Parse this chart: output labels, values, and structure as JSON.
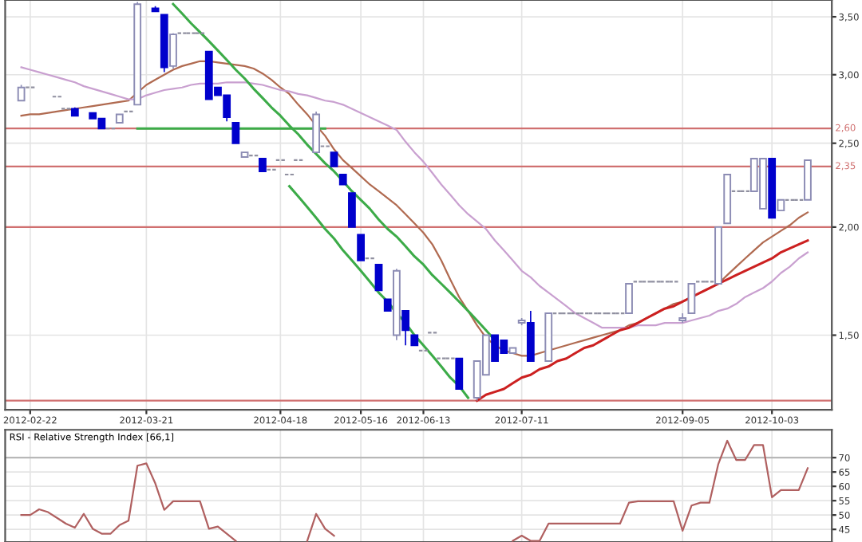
{
  "chart_data": [
    {
      "type": "candlestick",
      "log": "y",
      "grid": true,
      "categories": [
        null,
        "2012-02-22",
        null,
        null,
        null,
        null,
        null,
        null,
        null,
        null,
        null,
        null,
        null,
        null,
        "2012-03-21",
        null,
        null,
        null,
        null,
        null,
        null,
        null,
        null,
        null,
        null,
        null,
        null,
        null,
        null,
        "2012-04-18",
        null,
        null,
        null,
        null,
        null,
        null,
        null,
        null,
        "2012-05-16",
        null,
        null,
        null,
        null,
        null,
        null,
        "2012-06-13",
        null,
        null,
        null,
        null,
        null,
        null,
        null,
        null,
        null,
        null,
        "2012-07-11",
        null,
        null,
        null,
        null,
        null,
        null,
        null,
        null,
        null,
        null,
        null,
        null,
        null,
        null,
        null,
        null,
        null,
        "2012-09-05",
        null,
        null,
        null,
        null,
        null,
        null,
        null,
        null,
        null,
        "2012-10-03",
        null,
        null,
        null,
        null
      ],
      "ohlc": [
        [
          2.8,
          2.92,
          2.8,
          2.9
        ],
        [
          2.9,
          2.9,
          2.9,
          2.9
        ],
        null,
        null,
        [
          2.83,
          2.83,
          2.83,
          2.83
        ],
        [
          2.74,
          2.74,
          2.74,
          2.74
        ],
        [
          2.74,
          2.75,
          2.69,
          2.69
        ],
        null,
        [
          2.71,
          2.71,
          2.67,
          2.67
        ],
        [
          2.67,
          2.67,
          2.6,
          2.6
        ],
        [
          2.6,
          2.6,
          2.6,
          2.6
        ],
        [
          2.64,
          2.7,
          2.64,
          2.7
        ],
        [
          2.72,
          2.72,
          2.72,
          2.72
        ],
        [
          2.77,
          3.64,
          2.77,
          3.62
        ],
        null,
        [
          3.58,
          3.6,
          3.55,
          3.55
        ],
        [
          3.52,
          3.52,
          3.02,
          3.06
        ],
        [
          3.07,
          3.35,
          3.05,
          3.34
        ],
        [
          3.35,
          3.35,
          3.35,
          3.35
        ],
        [
          3.35,
          3.35,
          3.35,
          3.35
        ],
        [
          3.35,
          3.35,
          3.35,
          3.35
        ],
        [
          3.19,
          3.19,
          2.81,
          2.81
        ],
        [
          2.9,
          2.9,
          2.84,
          2.84
        ],
        [
          2.84,
          2.84,
          2.65,
          2.68
        ],
        [
          2.64,
          2.64,
          2.5,
          2.5
        ],
        [
          2.41,
          2.44,
          2.41,
          2.44
        ],
        [
          2.42,
          2.42,
          2.42,
          2.42
        ],
        [
          2.4,
          2.4,
          2.32,
          2.32
        ],
        [
          2.33,
          2.33,
          2.33,
          2.33
        ],
        [
          2.39,
          2.39,
          2.39,
          2.39
        ],
        [
          2.3,
          2.3,
          2.3,
          2.3
        ],
        [
          2.39,
          2.39,
          2.39,
          2.39
        ],
        null,
        [
          2.44,
          2.72,
          2.44,
          2.7
        ],
        [
          2.48,
          2.48,
          2.48,
          2.48
        ],
        [
          2.44,
          2.44,
          2.35,
          2.35
        ],
        [
          2.3,
          2.3,
          2.24,
          2.24
        ],
        [
          2.19,
          2.19,
          2.0,
          2.0
        ],
        [
          1.96,
          1.96,
          1.83,
          1.83
        ],
        [
          1.84,
          1.84,
          1.84,
          1.84
        ],
        [
          1.81,
          1.81,
          1.69,
          1.69
        ],
        [
          1.65,
          1.65,
          1.6,
          1.6
        ],
        [
          1.5,
          1.79,
          1.48,
          1.78
        ],
        [
          1.6,
          1.6,
          1.46,
          1.52
        ],
        [
          1.5,
          1.5,
          1.46,
          1.46
        ],
        [
          1.44,
          1.44,
          1.44,
          1.44
        ],
        [
          1.51,
          1.51,
          1.51,
          1.51
        ],
        [
          1.41,
          1.41,
          1.41,
          1.41
        ],
        [
          1.41,
          1.41,
          1.41,
          1.41
        ],
        [
          1.41,
          1.41,
          1.3,
          1.3
        ],
        null,
        [
          1.27,
          1.4,
          1.26,
          1.4
        ],
        [
          1.35,
          1.5,
          1.35,
          1.5
        ],
        [
          1.5,
          1.5,
          1.4,
          1.4
        ],
        [
          1.48,
          1.48,
          1.43,
          1.43
        ],
        [
          1.43,
          1.45,
          1.43,
          1.45
        ],
        [
          1.55,
          1.57,
          1.54,
          1.56
        ],
        [
          1.55,
          1.6,
          1.4,
          1.4
        ],
        null,
        [
          1.4,
          1.59,
          1.4,
          1.59
        ],
        [
          1.59,
          1.59,
          1.59,
          1.59
        ],
        [
          1.59,
          1.59,
          1.59,
          1.59
        ],
        [
          1.59,
          1.59,
          1.59,
          1.59
        ],
        [
          1.59,
          1.59,
          1.59,
          1.59
        ],
        [
          1.59,
          1.59,
          1.59,
          1.59
        ],
        [
          1.59,
          1.59,
          1.59,
          1.59
        ],
        [
          1.59,
          1.59,
          1.59,
          1.59
        ],
        [
          1.59,
          1.59,
          1.59,
          1.59
        ],
        [
          1.59,
          1.72,
          1.59,
          1.72
        ],
        [
          1.73,
          1.73,
          1.73,
          1.73
        ],
        [
          1.73,
          1.73,
          1.73,
          1.73
        ],
        [
          1.73,
          1.73,
          1.73,
          1.73
        ],
        [
          1.73,
          1.73,
          1.73,
          1.73
        ],
        [
          1.73,
          1.73,
          1.73,
          1.73
        ],
        [
          1.56,
          1.59,
          1.55,
          1.57
        ],
        [
          1.59,
          1.72,
          1.59,
          1.72
        ],
        [
          1.73,
          1.73,
          1.73,
          1.73
        ],
        [
          1.73,
          1.73,
          1.73,
          1.73
        ],
        [
          1.72,
          2.0,
          1.72,
          2.0
        ],
        [
          2.02,
          2.3,
          2.02,
          2.3
        ],
        [
          2.2,
          2.2,
          2.2,
          2.2
        ],
        [
          2.2,
          2.2,
          2.2,
          2.2
        ],
        [
          2.2,
          2.4,
          2.2,
          2.4
        ],
        [
          2.1,
          2.4,
          2.1,
          2.4
        ],
        [
          2.4,
          2.4,
          2.05,
          2.05
        ],
        [
          2.09,
          2.15,
          2.09,
          2.15
        ],
        [
          2.15,
          2.15,
          2.15,
          2.15
        ],
        [
          2.15,
          2.15,
          2.15,
          2.15
        ],
        [
          2.15,
          2.39,
          2.15,
          2.39
        ]
      ],
      "colors": [
        "#8c8cb4",
        "#9090a0",
        null,
        null,
        "#9090a0",
        "#9090a0",
        "#0000cc",
        null,
        "#0000cc",
        "#0000cc",
        "#9090a0",
        "#8c8cb4",
        "#9090a0",
        "#8c8cb4",
        null,
        "#0000cc",
        "#0000cc",
        "#8c8cb4",
        "#9090a0",
        "#9090a0",
        "#9090a0",
        "#0000cc",
        "#0000cc",
        "#0000cc",
        "#0000cc",
        "#8c8cb4",
        "#9090a0",
        "#0000cc",
        "#9090a0",
        "#9090a0",
        "#9090a0",
        "#9090a0",
        null,
        "#8c8cb4",
        "#9090a0",
        "#0000cc",
        "#0000cc",
        "#0000cc",
        "#0000cc",
        "#9090a0",
        "#0000cc",
        "#0000cc",
        "#8c8cb4",
        "#0000cc",
        "#0000cc",
        "#9090a0",
        "#9090a0",
        "#9090a0",
        "#9090a0",
        "#0000cc",
        null,
        "#8c8cb4",
        "#8c8cb4",
        "#0000cc",
        "#0000cc",
        "#8c8cb4",
        "#8c8cb4",
        "#0000cc",
        null,
        "#8c8cb4",
        "#9090a0",
        "#9090a0",
        "#9090a0",
        "#9090a0",
        "#9090a0",
        "#9090a0",
        "#9090a0",
        "#9090a0",
        "#8c8cb4",
        "#9090a0",
        "#9090a0",
        "#9090a0",
        "#9090a0",
        "#9090a0",
        "#8c8cb4",
        "#8c8cb4",
        "#9090a0",
        "#9090a0",
        "#8c8cb4",
        "#8c8cb4",
        "#9090a0",
        "#9090a0",
        "#8c8cb4",
        "#8c8cb4",
        "#0000cc",
        "#8c8cb4",
        "#9090a0",
        "#9090a0",
        "#8c8cb4"
      ],
      "series": [
        {
          "type": "line",
          "color": "#b06a50",
          "values": [
            2.69,
            2.7,
            2.7,
            2.71,
            2.72,
            2.73,
            2.74,
            2.75,
            2.76,
            2.77,
            2.78,
            2.79,
            2.8,
            2.86,
            2.92,
            2.96,
            3.0,
            3.04,
            3.07,
            3.09,
            3.11,
            3.11,
            3.1,
            3.09,
            3.08,
            3.07,
            3.05,
            3.01,
            2.96,
            2.9,
            2.85,
            2.77,
            2.7,
            2.62,
            2.55,
            2.46,
            2.39,
            2.34,
            2.29,
            2.24,
            2.2,
            2.16,
            2.12,
            2.07,
            2.02,
            1.97,
            1.91,
            1.83,
            1.74,
            1.66,
            1.6,
            1.54,
            1.49,
            1.46,
            1.44,
            1.43,
            1.42,
            1.42,
            1.43,
            1.44,
            1.45,
            1.46,
            1.47,
            1.48,
            1.49,
            1.5,
            1.51,
            1.52,
            1.54,
            1.55,
            1.57,
            1.59,
            1.61,
            1.63,
            1.64,
            1.66,
            1.68,
            1.7,
            1.72,
            1.76,
            1.8,
            1.84,
            1.88,
            1.92,
            1.95,
            1.98,
            2.01,
            2.05,
            2.08
          ]
        },
        {
          "type": "line",
          "color": "#c9a0d0",
          "values": [
            3.06,
            3.04,
            3.02,
            3.0,
            2.98,
            2.96,
            2.94,
            2.91,
            2.89,
            2.87,
            2.85,
            2.83,
            2.81,
            2.81,
            2.84,
            2.86,
            2.88,
            2.89,
            2.9,
            2.92,
            2.93,
            2.93,
            2.93,
            2.94,
            2.94,
            2.94,
            2.93,
            2.92,
            2.9,
            2.88,
            2.87,
            2.85,
            2.84,
            2.82,
            2.8,
            2.79,
            2.77,
            2.74,
            2.71,
            2.68,
            2.65,
            2.62,
            2.59,
            2.51,
            2.44,
            2.38,
            2.31,
            2.24,
            2.18,
            2.12,
            2.07,
            2.03,
            1.99,
            1.93,
            1.88,
            1.83,
            1.78,
            1.75,
            1.71,
            1.68,
            1.65,
            1.62,
            1.59,
            1.57,
            1.55,
            1.53,
            1.53,
            1.53,
            1.53,
            1.54,
            1.54,
            1.54,
            1.55,
            1.55,
            1.55,
            1.56,
            1.57,
            1.58,
            1.6,
            1.61,
            1.63,
            1.66,
            1.68,
            1.7,
            1.73,
            1.77,
            1.8,
            1.84,
            1.87
          ]
        },
        {
          "type": "line",
          "color": "#3cab48",
          "values": [
            null,
            null,
            null,
            null,
            null,
            null,
            null,
            null,
            null,
            null,
            null,
            null,
            null,
            null,
            null,
            null,
            null,
            3.62,
            3.53,
            3.44,
            3.36,
            3.28,
            3.2,
            3.12,
            3.04,
            2.97,
            2.89,
            2.82,
            2.75,
            2.69,
            2.62,
            2.56,
            2.49,
            2.43,
            2.37,
            2.32,
            2.26,
            2.2,
            2.15,
            2.1,
            2.04,
            1.99,
            1.95,
            1.9,
            1.85,
            1.81,
            1.76,
            1.72,
            1.68,
            1.64,
            1.6,
            1.56,
            1.52,
            1.48,
            null,
            null,
            null,
            null,
            null,
            null,
            null,
            null,
            null,
            null,
            null,
            null,
            null,
            null,
            null,
            null,
            null,
            null,
            null,
            null,
            null,
            null,
            null,
            null,
            null,
            null,
            null,
            null,
            null,
            null,
            null,
            null,
            null,
            null,
            null
          ]
        },
        {
          "type": "line",
          "color": "#3cab48",
          "values": [
            null,
            null,
            null,
            null,
            null,
            null,
            null,
            null,
            null,
            null,
            null,
            null,
            null,
            null,
            null,
            null,
            null,
            null,
            null,
            null,
            null,
            null,
            null,
            null,
            null,
            null,
            null,
            null,
            null,
            null,
            2.23,
            2.17,
            2.11,
            2.05,
            1.99,
            1.94,
            1.88,
            1.83,
            1.78,
            1.73,
            1.68,
            1.64,
            1.59,
            1.55,
            1.5,
            1.46,
            1.42,
            1.38,
            1.34,
            1.31,
            1.27,
            null,
            null,
            null,
            null,
            null,
            null,
            null,
            null,
            null,
            null,
            null,
            null,
            null,
            null,
            null,
            null,
            null,
            null,
            null,
            null,
            null,
            null,
            null,
            null,
            null,
            null,
            null,
            null,
            null,
            null,
            null,
            null,
            null,
            null,
            null,
            null,
            null,
            null
          ]
        },
        {
          "type": "line",
          "color": "#3cab48",
          "values": [
            null,
            null,
            null,
            null,
            null,
            null,
            null,
            null,
            null,
            null,
            null,
            null,
            null,
            2.6,
            2.6,
            2.6,
            2.6,
            2.6,
            2.6,
            2.6,
            2.6,
            2.6,
            2.6,
            2.6,
            2.6,
            2.6,
            2.6,
            2.6,
            2.6,
            2.6,
            2.6,
            2.6,
            2.6,
            2.6,
            2.6,
            null,
            null,
            null,
            null,
            null,
            null,
            null,
            null,
            null,
            null,
            null,
            null,
            null,
            null,
            null,
            null,
            null,
            null,
            null,
            null,
            null,
            null,
            null,
            null,
            null,
            null,
            null,
            null,
            null,
            null,
            null,
            null,
            null,
            null,
            null,
            null,
            null,
            null,
            null,
            null,
            null,
            null,
            null,
            null,
            null,
            null,
            null,
            null,
            null,
            null,
            null,
            null,
            null,
            null
          ]
        },
        {
          "type": "line",
          "color": "#cc2020",
          "values": [
            null,
            null,
            null,
            null,
            null,
            null,
            null,
            null,
            null,
            null,
            null,
            null,
            null,
            null,
            null,
            null,
            null,
            null,
            null,
            null,
            null,
            null,
            null,
            null,
            null,
            null,
            null,
            null,
            null,
            null,
            null,
            null,
            null,
            null,
            null,
            null,
            null,
            null,
            null,
            null,
            null,
            null,
            null,
            null,
            null,
            null,
            null,
            null,
            null,
            null,
            null,
            1.26,
            1.28,
            1.29,
            1.3,
            1.32,
            1.34,
            1.35,
            1.37,
            1.38,
            1.4,
            1.41,
            1.43,
            1.45,
            1.46,
            1.48,
            1.5,
            1.52,
            1.53,
            1.55,
            1.57,
            1.59,
            1.61,
            1.62,
            1.64,
            1.66,
            1.68,
            1.7,
            1.72,
            1.74,
            1.76,
            1.78,
            1.8,
            1.82,
            1.84,
            1.87,
            1.89,
            1.91,
            1.93
          ]
        }
      ],
      "ref_lines": [
        {
          "axis": "y",
          "value": 2.6,
          "label": "2,60",
          "color": "#d07070"
        },
        {
          "axis": "y",
          "value": 2.35,
          "label": "2,35",
          "color": "#d07070"
        },
        {
          "axis": "y",
          "value": 2.0,
          "color": "#d07070"
        },
        {
          "axis": "y",
          "value": 1.26,
          "color": "#d07070"
        }
      ],
      "ylim": [
        1.23,
        3.66
      ],
      "yticks": [
        {
          "value": 1.5,
          "label": "1,50"
        },
        {
          "value": 2.0,
          "label": "2,00"
        },
        {
          "value": 2.5,
          "label": "2,50"
        },
        {
          "value": 3.0,
          "label": "3,00"
        },
        {
          "value": 3.5,
          "label": "3,50"
        }
      ]
    },
    {
      "type": "line",
      "title": "RSI - Relative Strength Index [66,1]",
      "grid": true,
      "tick_labels": "y",
      "categories": [
        null,
        "2012-02-22",
        null,
        null,
        null,
        null,
        null,
        null,
        null,
        null,
        null,
        null,
        null,
        null,
        "2012-03-21",
        null,
        null,
        null,
        null,
        null,
        null,
        null,
        null,
        null,
        null,
        null,
        null,
        null,
        null,
        "2012-04-18",
        null,
        null,
        null,
        null,
        null,
        null,
        null,
        null,
        "2012-05-16",
        null,
        null,
        null,
        null,
        null,
        null,
        "2012-06-13",
        null,
        null,
        null,
        null,
        null,
        null,
        null,
        null,
        null,
        null,
        "2012-07-11",
        null,
        null,
        null,
        null,
        null,
        null,
        null,
        null,
        null,
        null,
        null,
        null,
        null,
        null,
        null,
        null,
        null,
        "2012-09-05",
        null,
        null,
        null,
        null,
        null,
        null,
        null,
        null,
        null,
        "2012-10-03",
        null,
        null,
        null,
        null
      ],
      "series": [
        {
          "color": "#b06060",
          "values": [
            50,
            50,
            52,
            51,
            49,
            47,
            45.6,
            50.4,
            45.2,
            43.5,
            43.5,
            46.5,
            48,
            67.2,
            68,
            61,
            51.8,
            54.8,
            54.8,
            54.8,
            54.8,
            45.2,
            46,
            43.5,
            41,
            null,
            null,
            null,
            null,
            null,
            null,
            null,
            41,
            50.4,
            45.2,
            42.8,
            null,
            null,
            null,
            null,
            null,
            null,
            null,
            null,
            null,
            null,
            null,
            null,
            null,
            null,
            null,
            null,
            null,
            null,
            null,
            41,
            42.8,
            41,
            41,
            47,
            47,
            47,
            47,
            47,
            47,
            47,
            47,
            47,
            54.3,
            54.8,
            54.8,
            54.8,
            54.8,
            54.8,
            44.5,
            53.3,
            54.3,
            54.3,
            67.8,
            75.9,
            69.2,
            69.2,
            74.4,
            74.4,
            56.2,
            58.7,
            58.7,
            58.7,
            66.3
          ]
        }
      ],
      "ref_lines": [
        {
          "axis": "y",
          "value": 70,
          "color": "#b8b8b8"
        }
      ],
      "ylim": [
        40.6,
        79.7
      ],
      "yticks": [
        45,
        50,
        55,
        60,
        65,
        70
      ]
    }
  ]
}
